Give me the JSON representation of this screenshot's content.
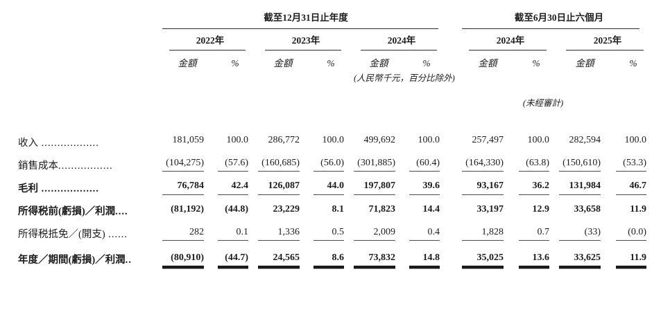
{
  "table": {
    "sections": [
      {
        "title": "截至12月31日止年度",
        "years": [
          "2022年",
          "2023年",
          "2024年"
        ]
      },
      {
        "title": "截至6月30日止六個月",
        "years": [
          "2024年",
          "2025年"
        ]
      }
    ],
    "col_headers": {
      "amount": "金額",
      "percent": "%"
    },
    "notes": {
      "currency": "(人民幣千元，百分比除外)",
      "unaudited": "(未經審計)"
    },
    "rows": [
      {
        "label": "收入",
        "leader": " ..................",
        "bold": false,
        "underline": "none",
        "values": [
          "181,059",
          "100.0",
          "286,772",
          "100.0",
          "499,692",
          "100.0",
          "257,497",
          "100.0",
          "282,594",
          "100.0"
        ]
      },
      {
        "label": "銷售成本",
        "leader": ".................",
        "bold": false,
        "underline": "single",
        "values": [
          "(104,275)",
          "(57.6)",
          "(160,685)",
          "(56.0)",
          "(301,885)",
          "(60.4)",
          "(164,330)",
          "(63.8)",
          "(150,610)",
          "(53.3)"
        ]
      },
      {
        "label": "毛利",
        "leader": " ..................",
        "bold": true,
        "underline": "single",
        "values": [
          "76,784",
          "42.4",
          "126,087",
          "44.0",
          "197,807",
          "39.6",
          "93,167",
          "36.2",
          "131,984",
          "46.7"
        ]
      },
      {
        "label": "所得税前(虧損)／利潤",
        "leader": "....",
        "bold": true,
        "underline": "none",
        "values": [
          "(81,192)",
          "(44.8)",
          "23,229",
          "8.1",
          "71,823",
          "14.4",
          "33,197",
          "12.9",
          "33,658",
          "11.9"
        ]
      },
      {
        "label": "所得税抵免／(開支)",
        "leader": " ......",
        "bold": false,
        "underline": "single",
        "values": [
          "282",
          "0.1",
          "1,336",
          "0.5",
          "2,009",
          "0.4",
          "1,828",
          "0.7",
          "(33)",
          "(0.0)"
        ]
      },
      {
        "label": "年度／期間(虧損)／利潤",
        "leader": "..",
        "bold": true,
        "underline": "double",
        "values": [
          "(80,910)",
          "(44.7)",
          "24,565",
          "8.6",
          "73,832",
          "14.8",
          "35,025",
          "13.6",
          "33,625",
          "11.9"
        ]
      }
    ]
  }
}
